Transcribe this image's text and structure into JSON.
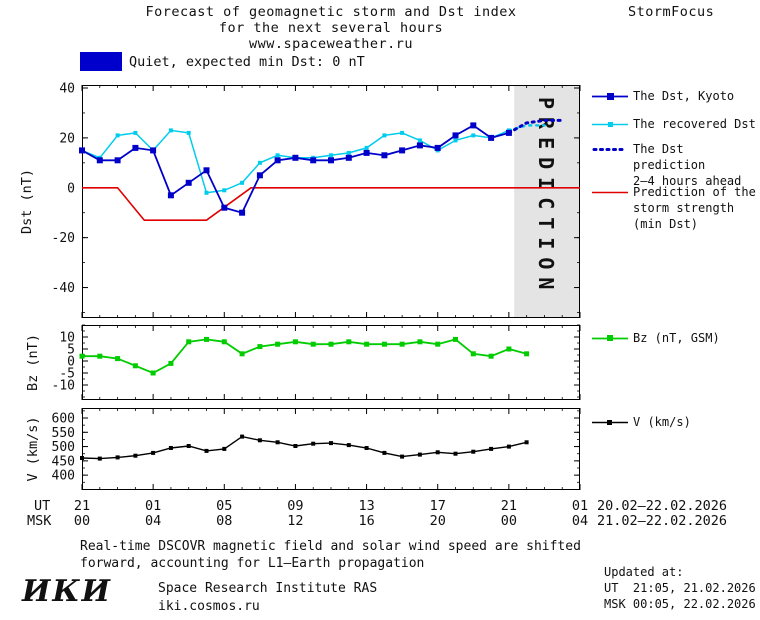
{
  "header": {
    "title_line1": "Forecast of geomagnetic storm and Dst index",
    "title_line2": "for the next several hours",
    "title_line3": "www.spaceweather.ru",
    "brand": "StormFocus"
  },
  "status": {
    "label": "Quiet, expected min Dst: 0 nT",
    "color": "#0000CC"
  },
  "legend": {
    "dst_kyoto": {
      "label": "The Dst, Kyoto",
      "color": "#0000C8"
    },
    "recovered": {
      "label": "The recovered Dst",
      "color": "#00CCEE"
    },
    "prediction": {
      "line1": "The Dst prediction",
      "line2": "2–4 hours ahead",
      "color": "#0000C8"
    },
    "storm": {
      "line1": "Prediction of the",
      "line2": "storm strength",
      "line3": "(min Dst)",
      "color": "#E00000"
    },
    "bz": {
      "label": "Bz (nT, GSM)",
      "color": "#00CC00"
    },
    "v": {
      "label": "V (km/s)",
      "color": "#000000"
    }
  },
  "chart_data": {
    "type": "line",
    "xlim": [
      0,
      28
    ],
    "x_unit": "hours since 21:00 UT 20.02.2026",
    "plots": [
      {
        "id": "dst",
        "ylabel": "Dst (nT)",
        "ylim": [
          -52.2,
          41.2
        ],
        "yticks": [
          40,
          20,
          0,
          -20,
          -40
        ],
        "minor_y": 10,
        "band": {
          "from": 24.3,
          "to": 28,
          "label": "PREDICTION"
        },
        "series": [
          {
            "name": "Prediction of the storm strength (min Dst)",
            "color": "#E00000",
            "width": 1.6,
            "x": [
              0,
              2,
              3.5,
              7,
              9.5,
              28
            ],
            "values": [
              0,
              0,
              -13,
              -13,
              0,
              0
            ]
          },
          {
            "name": "The recovered Dst",
            "color": "#00CCEE",
            "width": 1.5,
            "marker": 4,
            "x": [
              0,
              1,
              2,
              3,
              4,
              5,
              6,
              7,
              8,
              9,
              10,
              11,
              12,
              13,
              14,
              15,
              16,
              17,
              18,
              19,
              20,
              21,
              22,
              23,
              24
            ],
            "values": [
              15,
              12,
              21,
              22,
              15,
              23,
              22,
              -2,
              -1,
              2,
              10,
              13,
              12,
              12,
              13,
              14,
              16,
              21,
              22,
              19,
              15,
              19,
              21,
              20,
              23
            ]
          },
          {
            "name": "Recovered Dst prediction",
            "color": "#00CCEE",
            "width": 2.5,
            "dash": "2 5",
            "x": [
              24,
              25,
              26
            ],
            "values": [
              23,
              25,
              25
            ]
          },
          {
            "name": "The Dst, Kyoto",
            "color": "#0000C8",
            "width": 1.8,
            "marker": 6,
            "x": [
              0,
              1,
              2,
              3,
              4,
              5,
              6,
              7,
              8,
              9,
              10,
              11,
              12,
              13,
              14,
              15,
              16,
              17,
              18,
              19,
              20,
              21,
              22,
              23,
              24
            ],
            "values": [
              15,
              11,
              11,
              16,
              15,
              -3,
              2,
              7,
              -8,
              -10,
              5,
              11,
              12,
              11,
              11,
              12,
              14,
              13,
              15,
              17,
              16,
              21,
              25,
              20,
              22
            ]
          },
          {
            "name": "The Dst prediction 2–4 hours ahead",
            "color": "#0000C8",
            "width": 3,
            "dash": "2 4.5",
            "x": [
              24,
              25,
              26,
              27
            ],
            "values": [
              22,
              26,
              27,
              27
            ]
          }
        ]
      },
      {
        "id": "bz",
        "ylabel": "Bz (nT)",
        "ylim": [
          -16.25,
          15
        ],
        "yticks": [
          10,
          5,
          0,
          -5,
          -10
        ],
        "minor_y": 2.5,
        "series": [
          {
            "name": "Bz GSM",
            "color": "#00CC00",
            "width": 1.8,
            "marker": 5,
            "x": [
              0,
              1,
              2,
              3,
              4,
              5,
              6,
              7,
              8,
              9,
              10,
              11,
              12,
              13,
              14,
              15,
              16,
              17,
              18,
              19,
              20,
              21,
              22,
              23,
              24,
              25
            ],
            "values": [
              2,
              2,
              1,
              -2,
              -5,
              -1,
              8,
              9,
              8,
              3,
              6,
              7,
              8,
              7,
              7,
              8,
              7,
              7,
              7,
              8,
              7,
              9,
              3,
              2,
              5,
              3
            ]
          }
        ]
      },
      {
        "id": "v",
        "ylabel": "V (km/s)",
        "ylim": [
          348,
          635
        ],
        "yticks": [
          600,
          550,
          500,
          450,
          400
        ],
        "minor_y": 25,
        "series": [
          {
            "name": "Solar wind speed",
            "color": "#000000",
            "width": 1.4,
            "marker": 4,
            "x": [
              0,
              1,
              2,
              3,
              4,
              5,
              6,
              7,
              8,
              9,
              10,
              11,
              12,
              13,
              14,
              15,
              16,
              17,
              18,
              19,
              20,
              21,
              22,
              23,
              24,
              25
            ],
            "values": [
              460,
              458,
              462,
              468,
              478,
              495,
              502,
              485,
              492,
              535,
              522,
              515,
              502,
              510,
              512,
              505,
              495,
              478,
              465,
              472,
              480,
              475,
              482,
              492,
              500,
              515
            ]
          }
        ]
      }
    ],
    "xaxis": {
      "prefix_ut": "UT",
      "prefix_msk": "MSK",
      "tick_hours": [
        0,
        4,
        8,
        12,
        16,
        20,
        24,
        28
      ],
      "ut_labels": [
        "21",
        "01",
        "05",
        "09",
        "13",
        "17",
        "21",
        "01"
      ],
      "msk_labels": [
        "00",
        "04",
        "08",
        "12",
        "16",
        "20",
        "00",
        "04"
      ],
      "ut_daterange": "20.02–22.02.2026",
      "msk_daterange": "21.02–22.02.2026"
    }
  },
  "footer": {
    "note_line1": "Real-time DSCOVR magnetic field and solar wind speed are shifted",
    "note_line2": "forward, accounting for L1–Earth propagation",
    "logo": "ИКИ",
    "institute": "Space Research Institute RAS",
    "site": "iki.cosmos.ru",
    "updated_label": "Updated at:",
    "updated_ut": "UT  21:05, 21.02.2026",
    "updated_msk": "MSK 00:05, 22.02.2026"
  }
}
